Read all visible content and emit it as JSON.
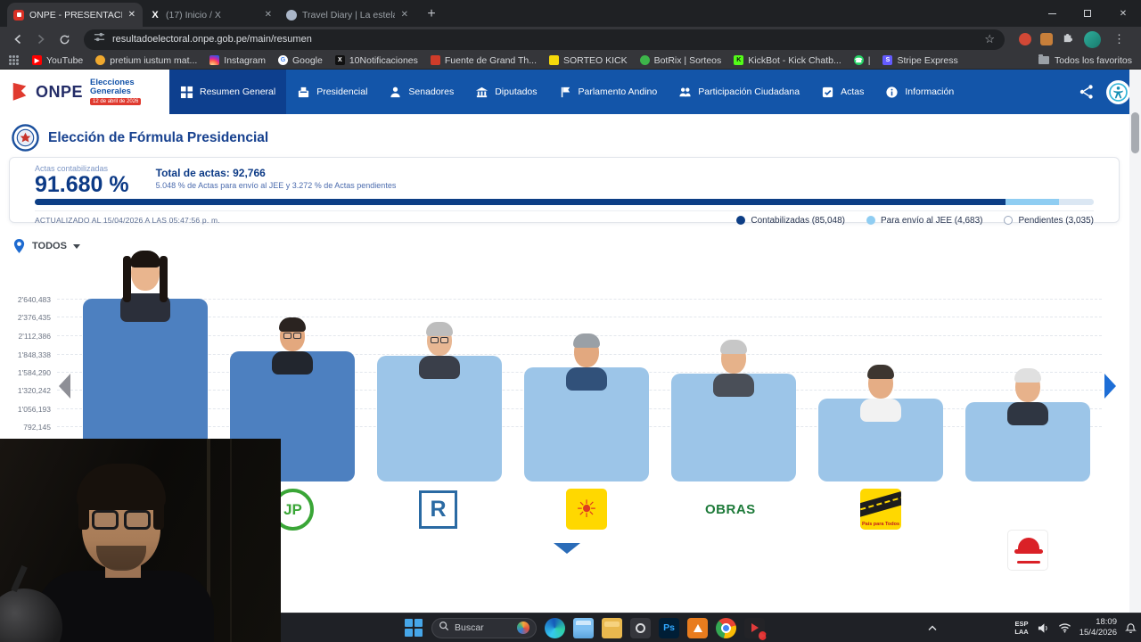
{
  "browser": {
    "tabs": [
      {
        "title": "ONPE - PRESENTACIÓN DE RES...",
        "active": true
      },
      {
        "title": "(17) Inicio / X",
        "active": false
      },
      {
        "title": "Travel Diary | La estelar evoluc...",
        "active": false
      }
    ],
    "url": "resultadoelectoral.onpe.gob.pe/main/resumen",
    "bookmarks": [
      {
        "label": "YouTube",
        "bg": "#ff0000",
        "glyph": "▶",
        "glyph_color": "#ffffff",
        "round": false
      },
      {
        "label": "pretium iustum mat...",
        "bg": "#f0a92e",
        "round": true
      },
      {
        "label": "Instagram",
        "cls": "fav-insta",
        "round": false
      },
      {
        "label": "Google",
        "bg": "#ffffff",
        "glyph": "G",
        "glyph_color": "#4285f4",
        "round": true
      },
      {
        "label": "10Notificaciones",
        "bg": "#111111",
        "glyph": "X",
        "glyph_color": "#ffffff",
        "round": false
      },
      {
        "label": "Fuente de Grand Th...",
        "bg": "#cf3c2a",
        "round": false
      },
      {
        "label": "SORTEO KICK",
        "bg": "#f5d90a",
        "round": false
      },
      {
        "label": "BotRix | Sorteos",
        "bg": "#3db54a",
        "round": true
      },
      {
        "label": "KickBot - Kick Chatb...",
        "bg": "#53fc18",
        "glyph": "K",
        "glyph_color": "#111111",
        "round": false
      },
      {
        "label": "|",
        "bg": "#25d366",
        "glyph": "☎",
        "glyph_color": "#ffffff",
        "round": true
      },
      {
        "label": "Stripe Express",
        "bg": "#635bff",
        "glyph": "S",
        "glyph_color": "#ffffff",
        "round": false
      }
    ],
    "bookmarks_all_label": "Todos los favoritos"
  },
  "site_header": {
    "brand": "ONPE",
    "brand_line1": "Elecciones",
    "brand_line2": "Generales",
    "brand_date": "12 de abril de 2026",
    "nav": [
      {
        "label": "Resumen General",
        "icon": "grid",
        "active": true
      },
      {
        "label": "Presidencial",
        "icon": "ballot",
        "active": false
      },
      {
        "label": "Senadores",
        "icon": "person",
        "active": false
      },
      {
        "label": "Diputados",
        "icon": "bank",
        "active": false
      },
      {
        "label": "Parlamento Andino",
        "icon": "flag",
        "active": false
      },
      {
        "label": "Participación Ciudadana",
        "icon": "people",
        "active": false
      },
      {
        "label": "Actas",
        "icon": "check",
        "active": false
      },
      {
        "label": "Información",
        "icon": "info",
        "active": false
      }
    ]
  },
  "page": {
    "title": "Elección de Fórmula Presidencial",
    "stats": {
      "counted_label": "Actas contabilizadas",
      "counted_percent": "91.680 %",
      "total_label": "Total de actas: 92,766",
      "detail": "5.048 % de Actas para envío al JEE y 3.272 % de Actas pendientes",
      "updated": "ACTUALIZADO AL 15/04/2026 A LAS 05:47:56 p. m.",
      "progress_segments": [
        {
          "pct": 91.68,
          "color": "#0d3e85"
        },
        {
          "pct": 5.048,
          "color": "#8fcdf2"
        },
        {
          "pct": 3.272,
          "color": "#dbe7f3"
        }
      ],
      "legend": [
        {
          "label": "Contabilizadas (85,048)",
          "color": "#0d3e85",
          "outline": false
        },
        {
          "label": "Para envío al JEE (4,683)",
          "color": "#8fcdf2",
          "outline": false
        },
        {
          "label": "Pendientes (3,035)",
          "color": "#ffffff",
          "outline": true
        }
      ]
    },
    "filter_label": "TODOS"
  },
  "chart_data": {
    "type": "bar",
    "categories": [
      "candidata-1",
      "JP",
      "R",
      "sol",
      "OBRAS",
      "País para Todos",
      "gorra-roja"
    ],
    "values": [
      2640483,
      1880000,
      1810000,
      1650000,
      1560000,
      1200000,
      1150000
    ],
    "bar_colors": [
      "#4d80c0",
      "#4d80c0",
      "#9cc5e8",
      "#9cc5e8",
      "#9cc5e8",
      "#9cc5e8",
      "#9cc5e8"
    ],
    "yticks": [
      2640483,
      2376435,
      2112386,
      1848338,
      1584290,
      1320242,
      1056193,
      792145
    ],
    "ytick_labels": [
      "2'640,483",
      "2'376,435",
      "2'112,386",
      "1'848,338",
      "1'584,290",
      "1'320,242",
      "1'056,193",
      "792,145"
    ],
    "ylim": [
      0,
      2640483
    ],
    "grid": true,
    "xlabel": "",
    "ylabel": ""
  },
  "candidates": [
    {
      "hair": "#1b1410",
      "skin": "#e9b58e",
      "shirt": "#2b2f3a",
      "glas": false,
      "female": true
    },
    {
      "hair": "#2a2320",
      "skin": "#e3a87e",
      "shirt": "#22262e",
      "glas": true,
      "female": false
    },
    {
      "hair": "#bdbdbd",
      "skin": "#e8b793",
      "shirt": "#3a3f4a",
      "glas": true,
      "female": false
    },
    {
      "hair": "#9aa0a6",
      "skin": "#e2a87f",
      "shirt": "#31517a",
      "glas": false,
      "female": false
    },
    {
      "hair": "#c7c7c7",
      "skin": "#e6b28a",
      "shirt": "#4a4f58",
      "glas": false,
      "female": false
    },
    {
      "hair": "#3d3630",
      "skin": "#e5ad85",
      "shirt": "#f2f2f2",
      "glas": false,
      "female": false
    },
    {
      "hair": "#e0e0e0",
      "skin": "#e7b28b",
      "shirt": "#2f3642",
      "glas": false,
      "female": false
    }
  ],
  "party_logos": [
    {
      "type": "jp",
      "text": "JP"
    },
    {
      "type": "r",
      "text": "R"
    },
    {
      "type": "sun",
      "text": ""
    },
    {
      "type": "obras",
      "text": "OBRAS"
    },
    {
      "type": "road",
      "text": "País para Todos"
    },
    {
      "type": "cap",
      "text": ""
    }
  ],
  "taskbar": {
    "search_placeholder": "Buscar",
    "apps": [
      {
        "type": "edge"
      },
      {
        "type": "fe"
      },
      {
        "type": "folder"
      },
      {
        "type": "rec"
      },
      {
        "type": "ps",
        "label": "Ps"
      },
      {
        "type": "orange"
      },
      {
        "type": "chrome"
      },
      {
        "type": "red",
        "badge": true
      }
    ],
    "tray": {
      "lang_line1": "ESP",
      "lang_line2": "LAA",
      "time": "18:09",
      "date": "15/4/2026"
    }
  }
}
